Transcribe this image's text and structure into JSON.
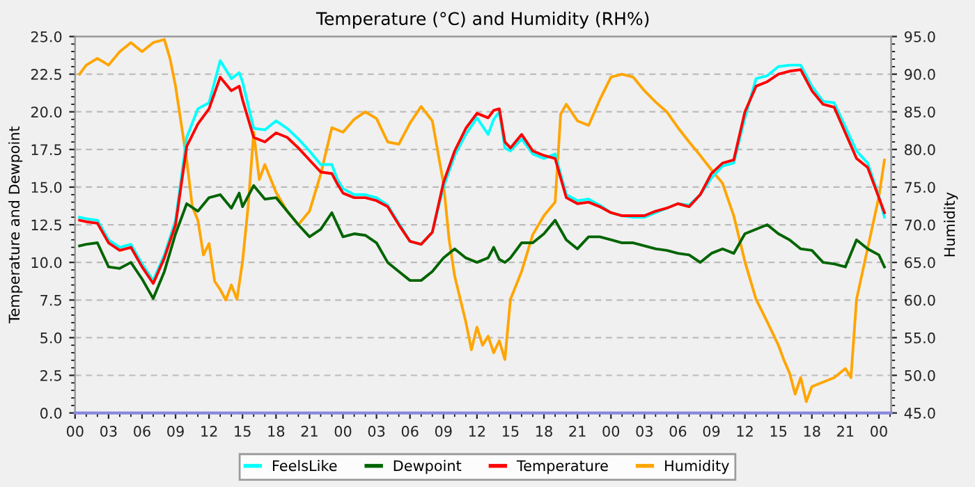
{
  "chart_data": {
    "type": "line",
    "title": "Temperature (°C) and Humidity (RH%)",
    "ylabel": "Temperature and Dewpoint",
    "y2label": "Humidity",
    "xlim": [
      0,
      73.1
    ],
    "ylim": [
      0,
      25
    ],
    "y2lim": [
      45,
      95
    ],
    "xticks": [
      {
        "value": 0,
        "label": "00"
      },
      {
        "value": 3,
        "label": "03"
      },
      {
        "value": 6,
        "label": "06"
      },
      {
        "value": 9,
        "label": "09"
      },
      {
        "value": 12,
        "label": "12"
      },
      {
        "value": 15,
        "label": "15"
      },
      {
        "value": 18,
        "label": "18"
      },
      {
        "value": 21,
        "label": "21"
      },
      {
        "value": 24,
        "label": "00"
      },
      {
        "value": 27,
        "label": "03"
      },
      {
        "value": 30,
        "label": "06"
      },
      {
        "value": 33,
        "label": "09"
      },
      {
        "value": 36,
        "label": "12"
      },
      {
        "value": 39,
        "label": "15"
      },
      {
        "value": 42,
        "label": "18"
      },
      {
        "value": 45,
        "label": "21"
      },
      {
        "value": 48,
        "label": "00"
      },
      {
        "value": 51,
        "label": "03"
      },
      {
        "value": 54,
        "label": "06"
      },
      {
        "value": 57,
        "label": "09"
      },
      {
        "value": 60,
        "label": "12"
      },
      {
        "value": 63,
        "label": "15"
      },
      {
        "value": 66,
        "label": "18"
      },
      {
        "value": 69,
        "label": "21"
      },
      {
        "value": 72,
        "label": "00"
      }
    ],
    "yticks": [
      {
        "value": 0,
        "label": "0.0"
      },
      {
        "value": 2.5,
        "label": "2.5"
      },
      {
        "value": 5,
        "label": "5.0"
      },
      {
        "value": 7.5,
        "label": "7.5"
      },
      {
        "value": 10,
        "label": "10.0"
      },
      {
        "value": 12.5,
        "label": "12.5"
      },
      {
        "value": 15,
        "label": "15.0"
      },
      {
        "value": 17.5,
        "label": "17.5"
      },
      {
        "value": 20,
        "label": "20.0"
      },
      {
        "value": 22.5,
        "label": "22.5"
      },
      {
        "value": 25,
        "label": "25.0"
      }
    ],
    "y2ticks": [
      {
        "value": 45,
        "label": "45.0"
      },
      {
        "value": 50,
        "label": "50.0"
      },
      {
        "value": 55,
        "label": "55.0"
      },
      {
        "value": 60,
        "label": "60.0"
      },
      {
        "value": 65,
        "label": "65.0"
      },
      {
        "value": 70,
        "label": "70.0"
      },
      {
        "value": 75,
        "label": "75.0"
      },
      {
        "value": 80,
        "label": "80.0"
      },
      {
        "value": 85,
        "label": "85.0"
      },
      {
        "value": 90,
        "label": "90.0"
      },
      {
        "value": 95,
        "label": "95.0"
      }
    ],
    "grid": true,
    "legend": "bottom",
    "marker": "none",
    "line_style": "solid",
    "series": [
      {
        "name": "FeelsLike",
        "color": "#00ffff",
        "x": [
          0.4,
          1,
          2,
          3,
          4,
          5,
          6,
          7,
          8,
          9,
          10,
          11,
          12,
          13,
          14,
          14.7,
          15,
          16,
          17,
          18,
          19,
          20,
          21,
          22,
          23,
          23.5,
          24,
          25,
          26,
          27,
          28,
          29,
          30,
          31,
          32,
          33,
          34,
          35,
          36,
          37,
          37.5,
          38,
          38.5,
          39,
          40,
          41,
          42,
          43,
          44,
          45,
          46,
          47,
          48,
          49,
          50,
          51,
          52,
          53,
          54,
          55,
          56,
          57,
          58,
          59,
          60,
          61,
          62,
          63,
          64,
          65,
          66,
          67,
          68,
          69,
          70,
          71,
          72,
          72.5
        ],
        "values": [
          13.0,
          12.9,
          12.8,
          11.5,
          11.0,
          11.2,
          9.9,
          8.8,
          10.5,
          12.8,
          18.3,
          20.2,
          20.6,
          23.4,
          22.2,
          22.6,
          22.0,
          18.9,
          18.8,
          19.4,
          18.9,
          18.2,
          17.4,
          16.5,
          16.5,
          15.5,
          14.9,
          14.5,
          14.5,
          14.3,
          13.8,
          12.6,
          11.4,
          11.2,
          12.0,
          15.0,
          17.1,
          18.5,
          19.6,
          18.5,
          19.5,
          20.0,
          17.6,
          17.4,
          18.2,
          17.2,
          16.9,
          17.2,
          14.5,
          14.1,
          14.2,
          13.8,
          13.3,
          13.1,
          13.0,
          13.0,
          13.3,
          13.6,
          13.9,
          13.8,
          14.5,
          15.6,
          16.4,
          16.6,
          19.6,
          22.2,
          22.4,
          23.0,
          23.1,
          23.1,
          21.7,
          20.7,
          20.6,
          19.0,
          17.4,
          16.6,
          14.4,
          13.0
        ]
      },
      {
        "name": "Dewpoint",
        "color": "#006400",
        "x": [
          0.4,
          1,
          2,
          3,
          4,
          5,
          6,
          7,
          8,
          9,
          10,
          11,
          12,
          13,
          14,
          14.7,
          15,
          16,
          17,
          18,
          19,
          20,
          21,
          22,
          23,
          24,
          25,
          26,
          27,
          28,
          29,
          30,
          31,
          32,
          33,
          34,
          35,
          36,
          37,
          37.5,
          38,
          38.5,
          39,
          40,
          41,
          42,
          43,
          44,
          45,
          46,
          47,
          48,
          49,
          50,
          51,
          52,
          53,
          54,
          55,
          56,
          57,
          58,
          59,
          60,
          61,
          62,
          63,
          64,
          65,
          66,
          67,
          68,
          69,
          70,
          71,
          72,
          72.5
        ],
        "values": [
          11.1,
          11.2,
          11.3,
          9.7,
          9.6,
          10.0,
          8.9,
          7.6,
          9.4,
          11.9,
          13.9,
          13.4,
          14.3,
          14.5,
          13.6,
          14.6,
          13.7,
          15.1,
          14.2,
          14.3,
          13.4,
          12.5,
          11.7,
          12.2,
          13.3,
          11.7,
          11.9,
          11.8,
          11.3,
          10.0,
          9.4,
          8.8,
          8.8,
          9.4,
          10.3,
          10.9,
          10.3,
          10.0,
          10.3,
          11.0,
          10.2,
          10.0,
          10.3,
          11.3,
          11.3,
          11.9,
          12.8,
          11.5,
          10.9,
          11.7,
          11.7,
          11.5,
          11.3,
          11.3,
          11.1,
          10.9,
          10.8,
          10.6,
          10.5,
          10.0,
          10.6,
          10.9,
          10.6,
          11.9,
          12.2,
          12.5,
          11.9,
          11.5,
          10.9,
          10.8,
          10.0,
          9.9,
          9.7,
          11.5,
          10.9,
          10.5,
          9.7
        ]
      },
      {
        "name": "Temperature",
        "color": "#ff0000",
        "x": [
          0.4,
          1,
          2,
          3,
          4,
          5,
          6,
          7,
          8,
          9,
          10,
          11,
          12,
          13,
          14,
          14.7,
          15,
          16,
          17,
          18,
          19,
          20,
          21,
          22,
          23,
          23.5,
          24,
          25,
          26,
          27,
          28,
          29,
          30,
          31,
          32,
          33,
          34,
          35,
          36,
          37,
          37.5,
          38,
          38.5,
          39,
          40,
          41,
          42,
          43,
          44,
          45,
          46,
          47,
          48,
          49,
          50,
          51,
          52,
          53,
          54,
          55,
          56,
          57,
          58,
          59,
          60,
          61,
          62,
          63,
          64,
          65,
          66,
          67,
          68,
          69,
          70,
          71,
          72,
          72.5
        ],
        "values": [
          12.8,
          12.7,
          12.6,
          11.3,
          10.8,
          11.0,
          9.7,
          8.6,
          10.3,
          12.5,
          17.7,
          19.2,
          20.2,
          22.3,
          21.4,
          21.7,
          20.8,
          18.3,
          18.0,
          18.6,
          18.3,
          17.6,
          16.8,
          16.0,
          15.9,
          15.2,
          14.6,
          14.3,
          14.3,
          14.1,
          13.7,
          12.5,
          11.4,
          11.2,
          12.0,
          15.3,
          17.4,
          18.9,
          19.9,
          19.6,
          20.1,
          20.2,
          18.0,
          17.6,
          18.5,
          17.4,
          17.1,
          16.9,
          14.3,
          13.9,
          14.0,
          13.7,
          13.3,
          13.1,
          13.1,
          13.1,
          13.4,
          13.6,
          13.9,
          13.7,
          14.5,
          15.9,
          16.6,
          16.8,
          20.0,
          21.7,
          22.0,
          22.5,
          22.7,
          22.8,
          21.4,
          20.5,
          20.3,
          18.6,
          16.9,
          16.3,
          14.3,
          13.3
        ]
      },
      {
        "name": "Humidity",
        "color": "#ffa500",
        "axis": "y2",
        "x": [
          0.4,
          1,
          2,
          3,
          4,
          5,
          6,
          7,
          8,
          8.5,
          9,
          10,
          10.5,
          11,
          11.5,
          12,
          12.5,
          13,
          13.5,
          14,
          14.5,
          15,
          15.5,
          16,
          16.5,
          17,
          18,
          19,
          20,
          21,
          22,
          23,
          24,
          25,
          26,
          27,
          28,
          29,
          30,
          31,
          32,
          33,
          33.5,
          34,
          35,
          35.5,
          36,
          36.5,
          37,
          37.5,
          38,
          38.5,
          39,
          40,
          41,
          42,
          43,
          43.5,
          44,
          45,
          46,
          47,
          48,
          49,
          50,
          51,
          52,
          53,
          54,
          55,
          56,
          57,
          58,
          59,
          60,
          61,
          62,
          63,
          63.5,
          64,
          64.5,
          65,
          65.5,
          66,
          67,
          68,
          69,
          69.5,
          70,
          71,
          72,
          72.5
        ],
        "values": [
          90.0,
          91.2,
          92.1,
          91.2,
          93.0,
          94.2,
          93.0,
          94.2,
          94.6,
          92.1,
          88.4,
          78.6,
          72.4,
          70.6,
          66.0,
          67.5,
          62.5,
          61.4,
          60.0,
          62.0,
          60.1,
          65.1,
          72.4,
          82.3,
          76.0,
          78.0,
          74.3,
          71.8,
          70.0,
          71.8,
          76.7,
          82.9,
          82.3,
          84.0,
          85.0,
          84.1,
          81.0,
          80.7,
          83.5,
          85.7,
          83.8,
          75.5,
          68.1,
          63.2,
          57.1,
          53.4,
          56.4,
          54.0,
          55.2,
          53.0,
          54.6,
          52.1,
          60.1,
          63.8,
          68.7,
          71.2,
          73.0,
          84.7,
          86.0,
          83.8,
          83.2,
          86.6,
          89.6,
          90.0,
          89.6,
          87.8,
          86.3,
          85.0,
          82.9,
          81.0,
          79.2,
          77.3,
          75.5,
          71.2,
          65.1,
          60.1,
          57.1,
          54.0,
          52.0,
          50.3,
          47.5,
          49.7,
          46.5,
          48.5,
          49.1,
          49.7,
          50.9,
          49.7,
          60.1,
          66.9,
          73.7,
          78.6
        ]
      }
    ]
  }
}
